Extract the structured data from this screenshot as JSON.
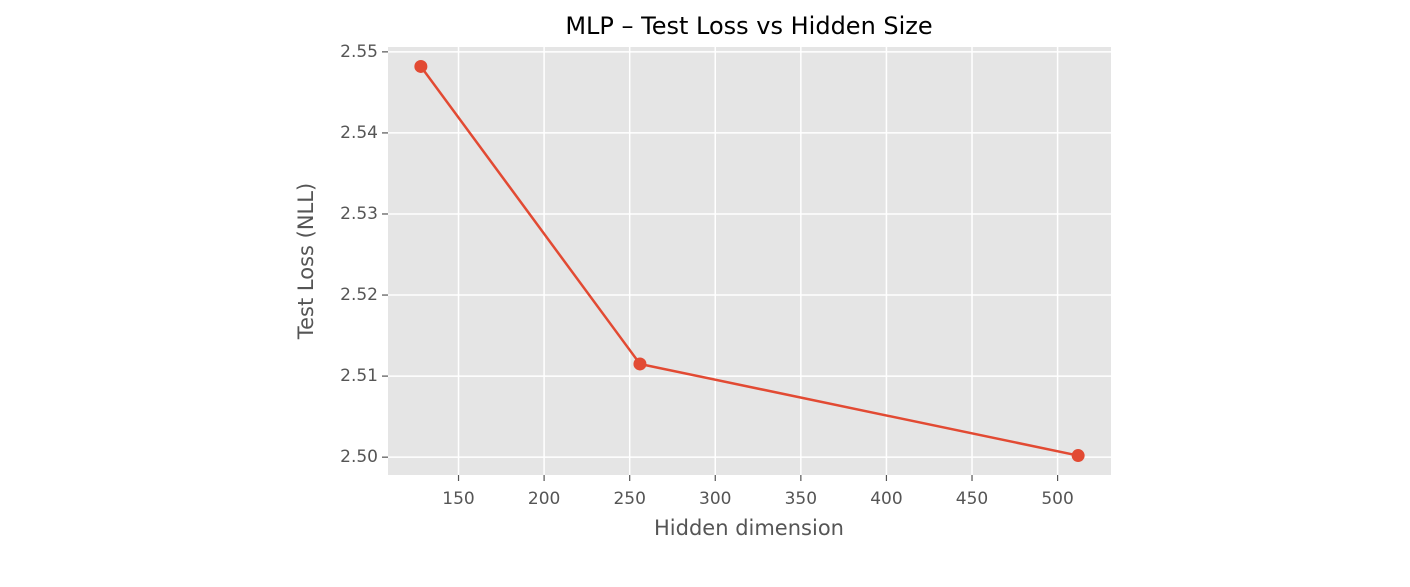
{
  "chart_data": {
    "type": "line",
    "title": "MLP – Test Loss vs Hidden Size",
    "x_label": "Hidden dimension",
    "y_label": "Test Loss (NLL)",
    "x": [
      128,
      256,
      512
    ],
    "values": [
      2.5482,
      2.5115,
      2.5002
    ],
    "color": "#e24a33",
    "xlim": [
      108.8,
      531.2
    ],
    "xticks": [
      150,
      200,
      250,
      300,
      350,
      400,
      450,
      500
    ],
    "ylim": [
      2.4978,
      2.5506
    ],
    "yticks": [
      {
        "value": 2.5,
        "label": "2.50"
      },
      2.51,
      2.52,
      2.53,
      2.54,
      2.55
    ],
    "grid": true
  }
}
